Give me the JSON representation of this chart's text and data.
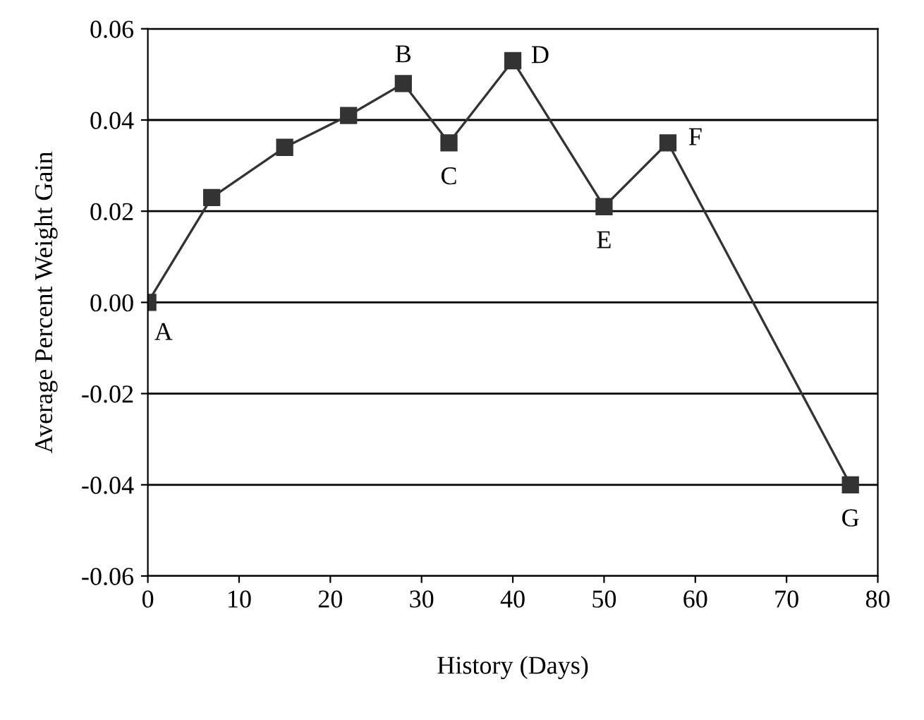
{
  "chart_data": {
    "type": "line",
    "xlabel": "History (Days)",
    "ylabel": "Average Percent Weight Gain",
    "x": [
      0,
      7,
      15,
      22,
      28,
      33,
      40,
      50,
      57,
      77
    ],
    "series": [
      {
        "color": "#333333",
        "values": [
          0.0,
          0.023,
          0.034,
          0.041,
          0.048,
          0.035,
          0.053,
          0.021,
          0.035,
          -0.04
        ]
      }
    ],
    "xlim": [
      0,
      80
    ],
    "xticks": [
      0,
      10,
      20,
      30,
      40,
      50,
      60,
      70,
      80
    ],
    "ylim": [
      -0.06,
      0.06
    ],
    "yticks": [
      {
        "value": -0.06,
        "label": "-0.06"
      },
      {
        "value": -0.04,
        "label": "-0.04"
      },
      {
        "value": -0.02,
        "label": "-0.02"
      },
      {
        "value": 0,
        "label": "0.00"
      },
      {
        "value": 0.02,
        "label": "0.02"
      },
      {
        "value": 0.04,
        "label": "0.04"
      },
      {
        "value": 0.06,
        "label": "0.06"
      }
    ],
    "grid": "y",
    "marker": "square",
    "line_style": "solid",
    "legend": false,
    "annotations": [
      {
        "text": "A",
        "x": 0,
        "y": 0.0
      },
      {
        "text": "B",
        "x": 28,
        "y": 0.048
      },
      {
        "text": "C",
        "x": 33,
        "y": 0.035
      },
      {
        "text": "D",
        "x": 40,
        "y": 0.053
      },
      {
        "text": "E",
        "x": 50,
        "y": 0.021
      },
      {
        "text": "F",
        "x": 57,
        "y": 0.035
      },
      {
        "text": "G",
        "x": 77,
        "y": -0.04
      }
    ]
  }
}
